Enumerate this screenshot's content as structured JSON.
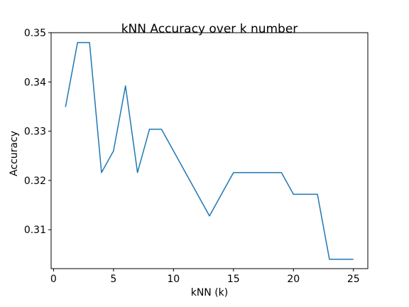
{
  "chart_data": {
    "type": "line",
    "title": "kNN Accuracy over k number",
    "xlabel": "kNN (k)",
    "ylabel": "Accuracy",
    "xlim": [
      -0.2,
      26.2
    ],
    "ylim": [
      0.3021,
      0.35
    ],
    "xticks": [
      0,
      5,
      10,
      15,
      20,
      25
    ],
    "xtick_labels": [
      "0",
      "5",
      "10",
      "15",
      "20",
      "25"
    ],
    "yticks": [
      0.31,
      0.32,
      0.33,
      0.34,
      0.35
    ],
    "ytick_labels": [
      "0.31",
      "0.32",
      "0.33",
      "0.34",
      "0.35"
    ],
    "grid": false,
    "series": [
      {
        "color": "#1f77b4",
        "x": [
          1,
          2,
          3,
          4,
          5,
          6,
          7,
          8,
          9,
          10,
          11,
          12,
          13,
          14,
          15,
          16,
          17,
          18,
          19,
          20,
          21,
          22,
          23,
          24,
          25
        ],
        "y": [
          0.3349,
          0.348,
          0.348,
          0.3216,
          0.326,
          0.3392,
          0.3216,
          0.3304,
          0.3304,
          0.326,
          0.3216,
          0.3172,
          0.3128,
          0.3172,
          0.3216,
          0.3216,
          0.3216,
          0.3216,
          0.3216,
          0.3172,
          0.3172,
          0.3172,
          0.304,
          0.304,
          0.304
        ]
      }
    ]
  }
}
